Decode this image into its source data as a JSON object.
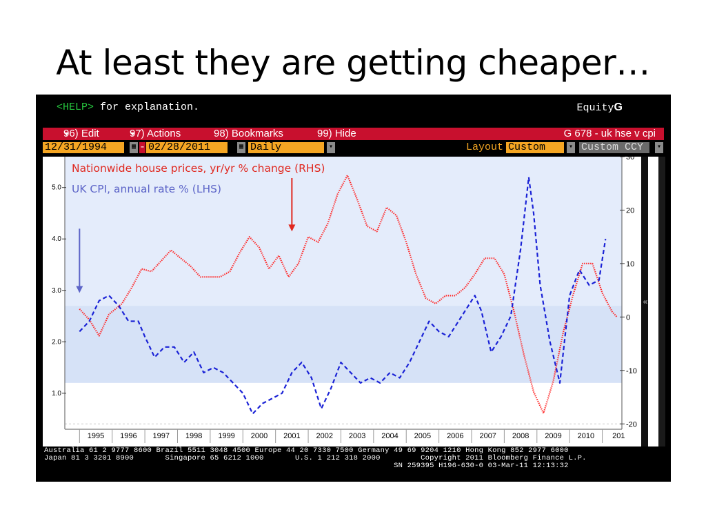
{
  "slide": {
    "title": "At least they are getting cheaper…"
  },
  "terminal": {
    "help_key": "<HELP>",
    "help_text": " for explanation.",
    "equity_label": "Equity",
    "equity_key": "G",
    "menu": {
      "edit": "96) Edit",
      "actions": "97) Actions",
      "bookmarks": "98) Bookmarks",
      "hide": "99) Hide",
      "graph_id": "G 678 - uk hse v cpi"
    },
    "filter": {
      "start_date": "12/31/1994",
      "end_date": "02/28/2011",
      "dash": "-",
      "periodicity": "Daily",
      "layout_label": "Layout",
      "layout_value": "Custom",
      "currency": "Custom CCY"
    },
    "footer_lines": [
      "Australia 61 2 9777 8600 Brazil 5511 3048 4500 Europe 44 20 7330 7500 Germany 49 69 9204 1210 Hong Kong 852 2977 6000",
      "Japan 81 3 3201 8900       Singapore 65 6212 1000       U.S. 1 212 318 2000         Copyright 2011 Bloomberg Finance L.P.",
      "                                                                              SN 259395 H196-630-0 03-Mar-11 12:13:32"
    ],
    "collapse_glyph": "«"
  },
  "colors": {
    "house": "#ff2a2a",
    "cpi": "#1a22d6",
    "plot_bg": "#e4ecfb",
    "band": "#d6e2f7",
    "menubar": "#c8102e",
    "orange": "#f5a623"
  },
  "chart_data": {
    "type": "line",
    "title": "",
    "x_label_years": [
      "1995",
      "1996",
      "1997",
      "1998",
      "1999",
      "2000",
      "2001",
      "2002",
      "2003",
      "2004",
      "2005",
      "2006",
      "2007",
      "2008",
      "2009",
      "2010",
      "201"
    ],
    "left_axis": {
      "ticks": [
        "1.0",
        "2.0",
        "3.0",
        "4.0",
        "5.0"
      ],
      "min": 0.3,
      "max": 5.6
    },
    "right_axis": {
      "ticks": [
        "-20",
        "-10",
        "0",
        "10",
        "20",
        "30"
      ],
      "min": -21,
      "max": 30
    },
    "series": [
      {
        "name": "Nationwide house prices, yr/yr % change (RHS)",
        "axis": "right",
        "style": "dotted",
        "points": [
          [
            1995.0,
            1.5
          ],
          [
            1995.3,
            -0.5
          ],
          [
            1995.6,
            -3.5
          ],
          [
            1995.9,
            0.5
          ],
          [
            1996.3,
            2.5
          ],
          [
            1996.6,
            5.5
          ],
          [
            1996.9,
            9.0
          ],
          [
            1997.2,
            8.5
          ],
          [
            1997.5,
            10.5
          ],
          [
            1997.8,
            12.5
          ],
          [
            1998.1,
            11.0
          ],
          [
            1998.4,
            9.5
          ],
          [
            1998.7,
            7.5
          ],
          [
            1999.0,
            7.5
          ],
          [
            1999.3,
            7.5
          ],
          [
            1999.6,
            8.5
          ],
          [
            1999.9,
            12.0
          ],
          [
            2000.2,
            15.0
          ],
          [
            2000.5,
            13.0
          ],
          [
            2000.8,
            9.0
          ],
          [
            2001.1,
            11.5
          ],
          [
            2001.4,
            7.5
          ],
          [
            2001.7,
            10.0
          ],
          [
            2002.0,
            15.0
          ],
          [
            2002.3,
            14.0
          ],
          [
            2002.6,
            17.5
          ],
          [
            2002.9,
            23.0
          ],
          [
            2003.2,
            26.5
          ],
          [
            2003.5,
            22.0
          ],
          [
            2003.8,
            17.0
          ],
          [
            2004.1,
            16.0
          ],
          [
            2004.4,
            20.5
          ],
          [
            2004.7,
            19.0
          ],
          [
            2005.0,
            14.0
          ],
          [
            2005.3,
            8.0
          ],
          [
            2005.6,
            3.5
          ],
          [
            2005.9,
            2.5
          ],
          [
            2006.2,
            4.0
          ],
          [
            2006.5,
            4.0
          ],
          [
            2006.8,
            5.5
          ],
          [
            2007.1,
            8.0
          ],
          [
            2007.4,
            11.0
          ],
          [
            2007.7,
            11.0
          ],
          [
            2008.0,
            8.0
          ],
          [
            2008.3,
            1.0
          ],
          [
            2008.6,
            -7.0
          ],
          [
            2008.9,
            -14.0
          ],
          [
            2009.2,
            -18.0
          ],
          [
            2009.5,
            -12.0
          ],
          [
            2009.8,
            -3.0
          ],
          [
            2010.1,
            4.0
          ],
          [
            2010.4,
            10.0
          ],
          [
            2010.7,
            10.0
          ],
          [
            2011.0,
            4.5
          ],
          [
            2011.3,
            1.0
          ],
          [
            2011.45,
            0.0
          ]
        ]
      },
      {
        "name": "UK CPI, annual rate % (LHS)",
        "axis": "left",
        "style": "dashed",
        "points": [
          [
            1995.0,
            2.2
          ],
          [
            1995.3,
            2.4
          ],
          [
            1995.6,
            2.8
          ],
          [
            1995.9,
            2.9
          ],
          [
            1996.2,
            2.7
          ],
          [
            1996.5,
            2.4
          ],
          [
            1996.8,
            2.4
          ],
          [
            1997.0,
            2.1
          ],
          [
            1997.3,
            1.7
          ],
          [
            1997.6,
            1.9
          ],
          [
            1997.9,
            1.9
          ],
          [
            1998.2,
            1.6
          ],
          [
            1998.5,
            1.8
          ],
          [
            1998.8,
            1.4
          ],
          [
            1999.1,
            1.5
          ],
          [
            1999.4,
            1.4
          ],
          [
            1999.7,
            1.2
          ],
          [
            2000.0,
            1.0
          ],
          [
            2000.3,
            0.6
          ],
          [
            2000.6,
            0.8
          ],
          [
            2000.9,
            0.9
          ],
          [
            2001.2,
            1.0
          ],
          [
            2001.5,
            1.4
          ],
          [
            2001.8,
            1.6
          ],
          [
            2002.1,
            1.3
          ],
          [
            2002.4,
            0.7
          ],
          [
            2002.7,
            1.1
          ],
          [
            2003.0,
            1.6
          ],
          [
            2003.3,
            1.4
          ],
          [
            2003.6,
            1.2
          ],
          [
            2003.9,
            1.3
          ],
          [
            2004.2,
            1.2
          ],
          [
            2004.5,
            1.4
          ],
          [
            2004.8,
            1.3
          ],
          [
            2005.1,
            1.6
          ],
          [
            2005.4,
            2.0
          ],
          [
            2005.7,
            2.4
          ],
          [
            2006.0,
            2.2
          ],
          [
            2006.3,
            2.1
          ],
          [
            2006.6,
            2.4
          ],
          [
            2006.9,
            2.7
          ],
          [
            2007.1,
            2.9
          ],
          [
            2007.3,
            2.6
          ],
          [
            2007.6,
            1.8
          ],
          [
            2007.9,
            2.1
          ],
          [
            2008.2,
            2.5
          ],
          [
            2008.5,
            3.8
          ],
          [
            2008.75,
            5.2
          ],
          [
            2008.9,
            4.5
          ],
          [
            2009.1,
            3.1
          ],
          [
            2009.4,
            2.0
          ],
          [
            2009.7,
            1.2
          ],
          [
            2010.0,
            2.9
          ],
          [
            2010.3,
            3.4
          ],
          [
            2010.6,
            3.1
          ],
          [
            2010.9,
            3.2
          ],
          [
            2011.1,
            4.0
          ]
        ]
      }
    ],
    "annotations": [
      {
        "text": "Nationwide house prices, yr/yr % change (RHS)",
        "color": "red"
      },
      {
        "text": "UK CPI, annual rate % (LHS)",
        "color": "blue"
      }
    ],
    "arrows": [
      {
        "series": "cpi",
        "x": 1995.0,
        "from_value": 4.2,
        "to_value": 2.95,
        "axis": "left"
      },
      {
        "series": "house",
        "x": 2001.5,
        "from_value": 26,
        "to_value": 16,
        "axis": "right"
      }
    ],
    "grid": false,
    "legend": "top-left"
  }
}
